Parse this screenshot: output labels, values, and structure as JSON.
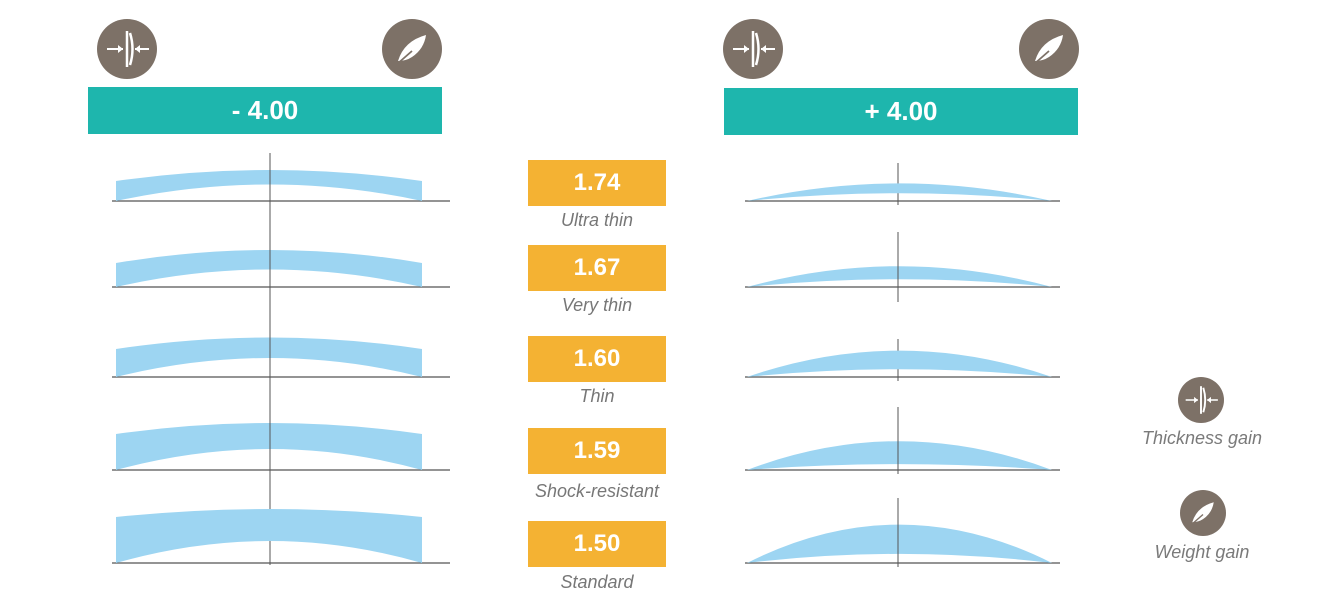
{
  "header": {
    "minus": {
      "power_label": "- 4.00",
      "icon_left": "thickness-icon",
      "icon_right": "feather-weight-icon"
    },
    "plus": {
      "power_label": "+ 4.00",
      "icon_left": "thickness-icon",
      "icon_right": "feather-weight-icon"
    }
  },
  "rows": [
    {
      "index": "1.74",
      "label": "Ultra thin"
    },
    {
      "index": "1.67",
      "label": "Very thin"
    },
    {
      "index": "1.60",
      "label": "Thin"
    },
    {
      "index": "1.59",
      "label": "Shock-resistant"
    },
    {
      "index": "1.50",
      "label": "Standard"
    }
  ],
  "legend": {
    "thickness": {
      "icon": "thickness-icon",
      "label": "Thickness gain"
    },
    "weight": {
      "icon": "feather-weight-icon",
      "label": "Weight gain"
    }
  },
  "colors": {
    "banner": "#1eb6ad",
    "index_box": "#f4b233",
    "icon_bg": "#7d7167",
    "lens": "#9dd5f2",
    "label": "#777777"
  }
}
